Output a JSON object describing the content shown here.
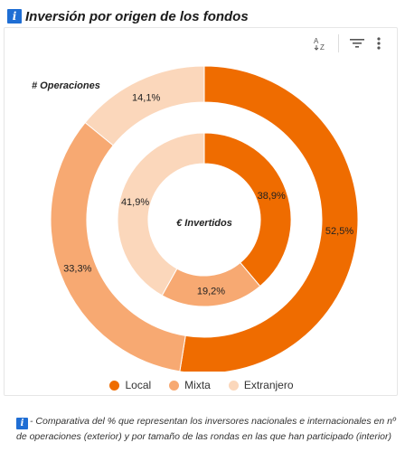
{
  "header": {
    "title": "Inversión por origen de los fondos",
    "info_icon": "info-icon"
  },
  "toolbar": {
    "icons": [
      "sort-az-icon",
      "filter-icon",
      "more-vert-icon"
    ]
  },
  "colors": {
    "Local": "#ef6c00",
    "Mixta": "#f7a972",
    "Extranjero": "#fbd7bb"
  },
  "chart_data": [
    {
      "type": "donut",
      "title": "# Operaciones",
      "ring": "outer",
      "categories": [
        "Local",
        "Mixta",
        "Extranjero"
      ],
      "values": [
        52.5,
        33.3,
        14.1
      ],
      "labels": [
        "52,5%",
        "33,3%",
        "14,1%"
      ]
    },
    {
      "type": "donut",
      "title": "€ Invertidos",
      "ring": "inner",
      "categories": [
        "Local",
        "Mixta",
        "Extranjero"
      ],
      "values": [
        38.9,
        19.2,
        41.9
      ],
      "labels": [
        "38,9%",
        "19,2%",
        "41,9%"
      ]
    }
  ],
  "legend": {
    "items": [
      "Local",
      "Mixta",
      "Extranjero"
    ],
    "placement": "bottom"
  },
  "footer": {
    "text": "- Comparativa del % que representan los inversores nacionales e internacionales en nº de operaciones (exterior) y por tamaño de las rondas en las que han participado (interior)"
  }
}
